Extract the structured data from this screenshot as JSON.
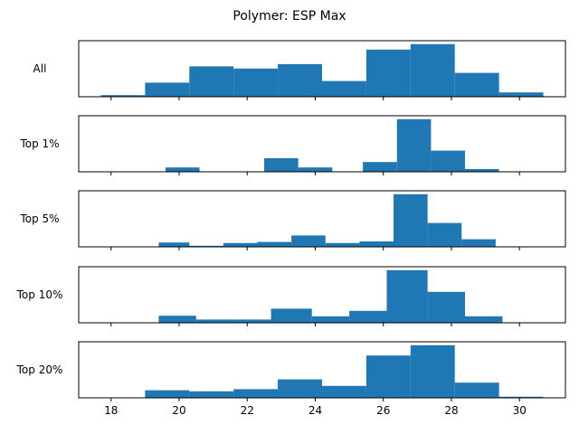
{
  "chart_data": {
    "type": "bar",
    "title": "Polymer: ESP Max",
    "xlabel": "",
    "ylabel": "",
    "xlim": [
      17.05,
      31.35
    ],
    "xticks": [
      18,
      20,
      22,
      24,
      26,
      28,
      30
    ],
    "bar_color": "#1f77b4",
    "panels": [
      {
        "label": "All",
        "ymax": 1.0,
        "bars": [
          {
            "x0": 17.7,
            "x1": 19.0,
            "value": 0.03
          },
          {
            "x0": 19.0,
            "x1": 20.3,
            "value": 0.26
          },
          {
            "x0": 20.3,
            "x1": 21.6,
            "value": 0.56
          },
          {
            "x0": 21.6,
            "x1": 22.9,
            "value": 0.52
          },
          {
            "x0": 22.9,
            "x1": 24.2,
            "value": 0.6
          },
          {
            "x0": 24.2,
            "x1": 25.5,
            "value": 0.29
          },
          {
            "x0": 25.5,
            "x1": 26.8,
            "value": 0.87
          },
          {
            "x0": 26.8,
            "x1": 28.1,
            "value": 0.97
          },
          {
            "x0": 28.1,
            "x1": 29.4,
            "value": 0.44
          },
          {
            "x0": 29.4,
            "x1": 30.7,
            "value": 0.08
          }
        ]
      },
      {
        "label": "Top 1%",
        "ymax": 1.0,
        "bars": [
          {
            "x0": 19.6,
            "x1": 20.6,
            "value": 0.08
          },
          {
            "x0": 22.5,
            "x1": 23.5,
            "value": 0.25
          },
          {
            "x0": 23.5,
            "x1": 24.5,
            "value": 0.08
          },
          {
            "x0": 25.4,
            "x1": 26.4,
            "value": 0.18
          },
          {
            "x0": 26.4,
            "x1": 27.4,
            "value": 0.97
          },
          {
            "x0": 27.4,
            "x1": 28.4,
            "value": 0.39
          },
          {
            "x0": 28.4,
            "x1": 29.4,
            "value": 0.05
          }
        ]
      },
      {
        "label": "Top 5%",
        "ymax": 1.0,
        "bars": [
          {
            "x0": 19.4,
            "x1": 20.3,
            "value": 0.08
          },
          {
            "x0": 20.3,
            "x1": 21.3,
            "value": 0.02
          },
          {
            "x0": 21.3,
            "x1": 22.3,
            "value": 0.07
          },
          {
            "x0": 22.3,
            "x1": 23.3,
            "value": 0.09
          },
          {
            "x0": 23.3,
            "x1": 24.3,
            "value": 0.21
          },
          {
            "x0": 24.3,
            "x1": 25.3,
            "value": 0.07
          },
          {
            "x0": 25.3,
            "x1": 26.3,
            "value": 0.1
          },
          {
            "x0": 26.3,
            "x1": 27.3,
            "value": 0.97
          },
          {
            "x0": 27.3,
            "x1": 28.3,
            "value": 0.44
          },
          {
            "x0": 28.3,
            "x1": 29.3,
            "value": 0.14
          }
        ]
      },
      {
        "label": "Top 10%",
        "ymax": 1.0,
        "bars": [
          {
            "x0": 19.4,
            "x1": 20.5,
            "value": 0.13
          },
          {
            "x0": 20.5,
            "x1": 21.6,
            "value": 0.06
          },
          {
            "x0": 21.6,
            "x1": 22.7,
            "value": 0.06
          },
          {
            "x0": 22.7,
            "x1": 23.9,
            "value": 0.26
          },
          {
            "x0": 23.9,
            "x1": 25.0,
            "value": 0.12
          },
          {
            "x0": 25.0,
            "x1": 26.1,
            "value": 0.22
          },
          {
            "x0": 26.1,
            "x1": 27.3,
            "value": 0.97
          },
          {
            "x0": 27.3,
            "x1": 28.4,
            "value": 0.57
          },
          {
            "x0": 28.4,
            "x1": 29.5,
            "value": 0.12
          }
        ]
      },
      {
        "label": "Top 20%",
        "ymax": 1.0,
        "bars": [
          {
            "x0": 19.0,
            "x1": 20.3,
            "value": 0.14
          },
          {
            "x0": 20.3,
            "x1": 21.6,
            "value": 0.12
          },
          {
            "x0": 21.6,
            "x1": 22.9,
            "value": 0.16
          },
          {
            "x0": 22.9,
            "x1": 24.2,
            "value": 0.34
          },
          {
            "x0": 24.2,
            "x1": 25.5,
            "value": 0.22
          },
          {
            "x0": 25.5,
            "x1": 26.8,
            "value": 0.78
          },
          {
            "x0": 26.8,
            "x1": 28.1,
            "value": 0.97
          },
          {
            "x0": 28.1,
            "x1": 29.4,
            "value": 0.28
          },
          {
            "x0": 29.4,
            "x1": 30.7,
            "value": 0.02
          }
        ]
      }
    ]
  }
}
